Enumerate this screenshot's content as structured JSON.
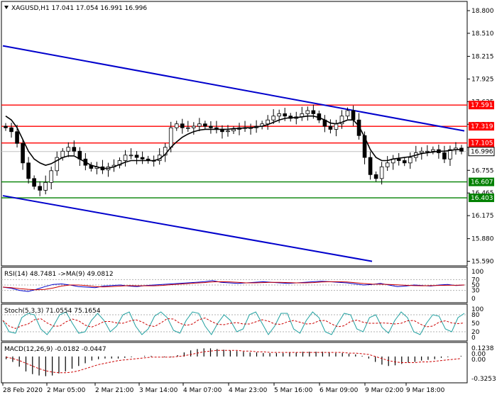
{
  "chart_data": {
    "type": "candlestick",
    "symbol_line": "XAGUSD,H1  17.041 17.054 16.991 16.996",
    "x_tick_labels": [
      "28 Feb 2020",
      "2 Mar 05:00",
      "2 Mar 21:00",
      "3 Mar 14:00",
      "4 Mar 07:00",
      "4 Mar 23:00",
      "5 Mar 16:00",
      "6 Mar 09:00",
      "9 Mar 02:00",
      "9 Mar 18:00"
    ],
    "price_axis": {
      "ylim": [
        15.55,
        18.9
      ],
      "ticks": [
        "18.800",
        "18.510",
        "18.215",
        "17.925",
        "17.635",
        "17.345",
        "17.050",
        "16.755",
        "16.465",
        "16.175",
        "15.880",
        "15.590"
      ]
    },
    "price_series": [
      17.3,
      17.25,
      17.1,
      16.85,
      16.65,
      16.55,
      16.5,
      16.6,
      16.75,
      16.92,
      17.0,
      17.05,
      17.0,
      16.9,
      16.82,
      16.78,
      16.8,
      16.76,
      16.8,
      16.82,
      16.88,
      16.95,
      16.95,
      16.92,
      16.9,
      16.88,
      16.88,
      16.95,
      17.05,
      17.3,
      17.35,
      17.3,
      17.3,
      17.32,
      17.35,
      17.32,
      17.3,
      17.28,
      17.25,
      17.26,
      17.28,
      17.3,
      17.3,
      17.3,
      17.32,
      17.35,
      17.4,
      17.45,
      17.48,
      17.45,
      17.42,
      17.44,
      17.48,
      17.52,
      17.48,
      17.4,
      17.32,
      17.28,
      17.35,
      17.45,
      17.52,
      17.4,
      17.2,
      16.92,
      16.7,
      16.65,
      16.8,
      16.85,
      16.9,
      16.88,
      16.85,
      16.92,
      16.98,
      17.0,
      17.0,
      17.02,
      16.98,
      16.9,
      17.02,
      17.04,
      17.0
    ],
    "ma_series": [
      17.45,
      17.4,
      17.3,
      17.15,
      17.0,
      16.9,
      16.85,
      16.82,
      16.84,
      16.88,
      16.92,
      16.94,
      16.94,
      16.9,
      16.86,
      16.82,
      16.8,
      16.78,
      16.78,
      16.8,
      16.83,
      16.86,
      16.88,
      16.88,
      16.88,
      16.88,
      16.88,
      16.9,
      16.96,
      17.05,
      17.12,
      17.18,
      17.22,
      17.25,
      17.27,
      17.28,
      17.28,
      17.28,
      17.28,
      17.28,
      17.29,
      17.29,
      17.3,
      17.3,
      17.31,
      17.32,
      17.34,
      17.37,
      17.4,
      17.42,
      17.43,
      17.43,
      17.44,
      17.45,
      17.45,
      17.43,
      17.4,
      17.36,
      17.35,
      17.37,
      17.4,
      17.4,
      17.32,
      17.18,
      17.02,
      16.92,
      16.88,
      16.88,
      16.9,
      16.91,
      16.92,
      16.93,
      16.95,
      16.97,
      16.98,
      16.99,
      17.0,
      17.0,
      17.01,
      17.02,
      17.02
    ],
    "horizontal_levels": [
      {
        "label": "17.591",
        "value": 17.591,
        "color": "#ff0000"
      },
      {
        "label": "17.319",
        "value": 17.319,
        "color": "#ff0000"
      },
      {
        "label": "17.105",
        "value": 17.105,
        "color": "#ff0000"
      },
      {
        "label": "16.607",
        "value": 16.607,
        "color": "#008000"
      },
      {
        "label": "16.403",
        "value": 16.403,
        "color": "#008000"
      }
    ],
    "current_price": {
      "label": "16.996",
      "value": 16.996
    },
    "channel_lines": [
      {
        "x": [
          0,
          1
        ],
        "y": [
          18.35,
          17.26
        ],
        "color": "#0000cc"
      },
      {
        "x": [
          0,
          0.8
        ],
        "y": [
          16.43,
          15.59
        ],
        "color": "#0000cc"
      }
    ],
    "rsi": {
      "title": "RSI(14) 48.7481  ->MA(9) 49.0812",
      "ticks": [
        "100",
        "70",
        "50",
        "30",
        "0"
      ],
      "levels": [
        70,
        50,
        30
      ],
      "ylim": [
        0,
        100
      ],
      "series": [
        42,
        38,
        30,
        26,
        34,
        44,
        52,
        54,
        50,
        44,
        42,
        40,
        46,
        48,
        50,
        46,
        44,
        48,
        50,
        52,
        54,
        56,
        58,
        60,
        62,
        66,
        60,
        58,
        56,
        58,
        60,
        62,
        60,
        58,
        56,
        58,
        60,
        62,
        64,
        62,
        60,
        58,
        54,
        50,
        52,
        56,
        50,
        44,
        46,
        50,
        48,
        46,
        50,
        52,
        48,
        50
      ]
    },
    "stoch": {
      "title": "Stoch(5,3,3) 71.0554 75.1654",
      "ticks": [
        "100",
        "80",
        "50",
        "20",
        "0"
      ],
      "levels": [
        80,
        20
      ],
      "ylim": [
        0,
        100
      ],
      "series": [
        60,
        20,
        15,
        70,
        85,
        80,
        30,
        10,
        40,
        80,
        90,
        50,
        15,
        20,
        60,
        85,
        60,
        20,
        40,
        80,
        90,
        40,
        10,
        30,
        75,
        90,
        70,
        25,
        15,
        60,
        90,
        85,
        40,
        10,
        50,
        80,
        60,
        20,
        30,
        80,
        90,
        50,
        10,
        40,
        85,
        85,
        30,
        15,
        60,
        90,
        70,
        20,
        10,
        50,
        85,
        80,
        30,
        20,
        70,
        80,
        35,
        15,
        60,
        90,
        70,
        20,
        10,
        50,
        80,
        75,
        30,
        20,
        70,
        85
      ]
    },
    "macd": {
      "title": "MACD(12,26,9) -0.0182 -0.0447",
      "ticks": [
        "0.1238",
        "0.00",
        "0.00",
        "-0.3253"
      ],
      "ylim": [
        -0.3253,
        0.1238
      ],
      "hist": [
        -0.04,
        -0.08,
        -0.15,
        -0.22,
        -0.26,
        -0.28,
        -0.29,
        -0.28,
        -0.25,
        -0.22,
        -0.18,
        -0.14,
        -0.1,
        -0.06,
        -0.04,
        -0.03,
        -0.03,
        -0.03,
        -0.02,
        -0.01,
        0.0,
        0.01,
        0.01,
        0.0,
        -0.01,
        -0.01,
        0.02,
        0.06,
        0.09,
        0.11,
        0.12,
        0.12,
        0.11,
        0.1,
        0.09,
        0.08,
        0.07,
        0.06,
        0.06,
        0.05,
        0.05,
        0.05,
        0.05,
        0.06,
        0.06,
        0.07,
        0.07,
        0.07,
        0.07,
        0.06,
        0.05,
        0.05,
        0.04,
        0.03,
        0.01,
        -0.03,
        -0.08,
        -0.12,
        -0.14,
        -0.13,
        -0.11,
        -0.09,
        -0.08,
        -0.06,
        -0.05,
        -0.04,
        -0.02,
        -0.01,
        0.0,
        0.01
      ],
      "signal": [
        -0.01,
        -0.03,
        -0.06,
        -0.1,
        -0.14,
        -0.18,
        -0.21,
        -0.23,
        -0.24,
        -0.24,
        -0.23,
        -0.21,
        -0.18,
        -0.15,
        -0.12,
        -0.1,
        -0.08,
        -0.06,
        -0.05,
        -0.04,
        -0.03,
        -0.02,
        -0.01,
        -0.01,
        -0.01,
        -0.01,
        0.0,
        0.01,
        0.03,
        0.05,
        0.07,
        0.08,
        0.09,
        0.09,
        0.09,
        0.09,
        0.08,
        0.08,
        0.07,
        0.07,
        0.06,
        0.06,
        0.06,
        0.06,
        0.06,
        0.06,
        0.06,
        0.06,
        0.06,
        0.06,
        0.06,
        0.06,
        0.05,
        0.05,
        0.04,
        0.03,
        0.0,
        -0.03,
        -0.06,
        -0.08,
        -0.09,
        -0.09,
        -0.09,
        -0.08,
        -0.08,
        -0.07,
        -0.06,
        -0.05,
        -0.04,
        -0.03
      ]
    }
  }
}
